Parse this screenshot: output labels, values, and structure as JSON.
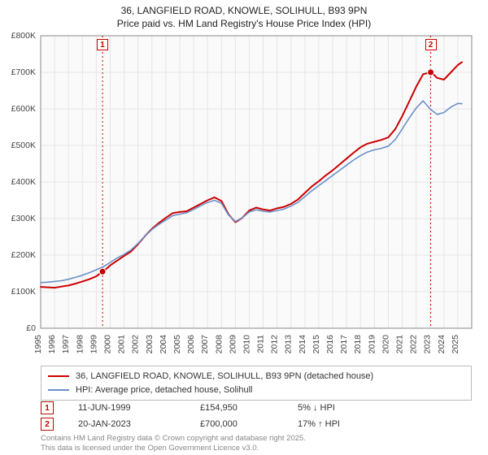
{
  "title_line1": "36, LANGFIELD ROAD, KNOWLE, SOLIHULL, B93 9PN",
  "title_line2": "Price paid vs. HM Land Registry's House Price Index (HPI)",
  "title_fontsize": 12,
  "chart": {
    "type": "line",
    "background_color": "#ffffff",
    "plot_background_color": "#fafafa",
    "grid_color": "#e5e5e5",
    "axis_color": "#888888",
    "border_color": "#bbbbbb",
    "x": {
      "min": 1995,
      "max": 2026,
      "ticks": [
        1995,
        1996,
        1997,
        1998,
        1999,
        2000,
        2001,
        2002,
        2003,
        2004,
        2005,
        2006,
        2007,
        2008,
        2009,
        2010,
        2011,
        2012,
        2013,
        2014,
        2015,
        2016,
        2017,
        2018,
        2019,
        2020,
        2021,
        2022,
        2023,
        2024,
        2025
      ],
      "tick_fontsize": 10.5,
      "tick_rotation": -90
    },
    "y": {
      "min": 0,
      "max": 800000,
      "ticks": [
        0,
        100000,
        200000,
        300000,
        400000,
        500000,
        600000,
        700000,
        800000
      ],
      "tick_labels": [
        "£0",
        "£100K",
        "£200K",
        "£300K",
        "£400K",
        "£500K",
        "£600K",
        "£700K",
        "£800K"
      ],
      "tick_fontsize": 10.5
    },
    "series": [
      {
        "name": "36, LANGFIELD ROAD, KNOWLE, SOLIHULL, B93 9PN (detached house)",
        "color": "#cc0000",
        "width": 2,
        "points": [
          [
            1995.0,
            113000
          ],
          [
            1995.5,
            112000
          ],
          [
            1996.0,
            111000
          ],
          [
            1996.5,
            114000
          ],
          [
            1997.0,
            117000
          ],
          [
            1997.5,
            122000
          ],
          [
            1998.0,
            128000
          ],
          [
            1998.5,
            134000
          ],
          [
            1999.0,
            142000
          ],
          [
            1999.45,
            154950
          ],
          [
            1999.5,
            155000
          ],
          [
            2000.0,
            172000
          ],
          [
            2000.5,
            185000
          ],
          [
            2001.0,
            198000
          ],
          [
            2001.5,
            210000
          ],
          [
            2002.0,
            230000
          ],
          [
            2002.5,
            252000
          ],
          [
            2003.0,
            272000
          ],
          [
            2003.5,
            288000
          ],
          [
            2004.0,
            302000
          ],
          [
            2004.5,
            315000
          ],
          [
            2005.0,
            318000
          ],
          [
            2005.5,
            320000
          ],
          [
            2006.0,
            330000
          ],
          [
            2006.5,
            340000
          ],
          [
            2007.0,
            350000
          ],
          [
            2007.5,
            358000
          ],
          [
            2008.0,
            348000
          ],
          [
            2008.5,
            312000
          ],
          [
            2009.0,
            290000
          ],
          [
            2009.5,
            302000
          ],
          [
            2010.0,
            322000
          ],
          [
            2010.5,
            330000
          ],
          [
            2011.0,
            325000
          ],
          [
            2011.5,
            322000
          ],
          [
            2012.0,
            328000
          ],
          [
            2012.5,
            332000
          ],
          [
            2013.0,
            340000
          ],
          [
            2013.5,
            352000
          ],
          [
            2014.0,
            370000
          ],
          [
            2014.5,
            388000
          ],
          [
            2015.0,
            402000
          ],
          [
            2015.5,
            418000
          ],
          [
            2016.0,
            432000
          ],
          [
            2016.5,
            448000
          ],
          [
            2017.0,
            464000
          ],
          [
            2017.5,
            480000
          ],
          [
            2018.0,
            495000
          ],
          [
            2018.5,
            505000
          ],
          [
            2019.0,
            510000
          ],
          [
            2019.5,
            515000
          ],
          [
            2020.0,
            522000
          ],
          [
            2020.5,
            545000
          ],
          [
            2021.0,
            580000
          ],
          [
            2021.5,
            620000
          ],
          [
            2022.0,
            660000
          ],
          [
            2022.5,
            695000
          ],
          [
            2023.05,
            700000
          ],
          [
            2023.1,
            700000
          ],
          [
            2023.5,
            685000
          ],
          [
            2024.0,
            680000
          ],
          [
            2024.5,
            700000
          ],
          [
            2025.0,
            720000
          ],
          [
            2025.3,
            728000
          ]
        ]
      },
      {
        "name": "HPI: Average price, detached house, Solihull",
        "color": "#6a90c8",
        "width": 1.6,
        "points": [
          [
            1995.0,
            125000
          ],
          [
            1995.5,
            126000
          ],
          [
            1996.0,
            128000
          ],
          [
            1996.5,
            130000
          ],
          [
            1997.0,
            134000
          ],
          [
            1997.5,
            139000
          ],
          [
            1998.0,
            145000
          ],
          [
            1998.5,
            152000
          ],
          [
            1999.0,
            160000
          ],
          [
            1999.5,
            168000
          ],
          [
            2000.0,
            180000
          ],
          [
            2000.5,
            192000
          ],
          [
            2001.0,
            202000
          ],
          [
            2001.5,
            214000
          ],
          [
            2002.0,
            232000
          ],
          [
            2002.5,
            252000
          ],
          [
            2003.0,
            270000
          ],
          [
            2003.5,
            284000
          ],
          [
            2004.0,
            296000
          ],
          [
            2004.5,
            308000
          ],
          [
            2005.0,
            312000
          ],
          [
            2005.5,
            316000
          ],
          [
            2006.0,
            325000
          ],
          [
            2006.5,
            335000
          ],
          [
            2007.0,
            344000
          ],
          [
            2007.5,
            350000
          ],
          [
            2008.0,
            342000
          ],
          [
            2008.5,
            310000
          ],
          [
            2009.0,
            292000
          ],
          [
            2009.5,
            302000
          ],
          [
            2010.0,
            318000
          ],
          [
            2010.5,
            324000
          ],
          [
            2011.0,
            320000
          ],
          [
            2011.5,
            318000
          ],
          [
            2012.0,
            322000
          ],
          [
            2012.5,
            326000
          ],
          [
            2013.0,
            334000
          ],
          [
            2013.5,
            344000
          ],
          [
            2014.0,
            360000
          ],
          [
            2014.5,
            376000
          ],
          [
            2015.0,
            390000
          ],
          [
            2015.5,
            404000
          ],
          [
            2016.0,
            418000
          ],
          [
            2016.5,
            432000
          ],
          [
            2017.0,
            446000
          ],
          [
            2017.5,
            460000
          ],
          [
            2018.0,
            472000
          ],
          [
            2018.5,
            482000
          ],
          [
            2019.0,
            488000
          ],
          [
            2019.5,
            492000
          ],
          [
            2020.0,
            498000
          ],
          [
            2020.5,
            516000
          ],
          [
            2021.0,
            545000
          ],
          [
            2021.5,
            575000
          ],
          [
            2022.0,
            602000
          ],
          [
            2022.5,
            622000
          ],
          [
            2023.0,
            600000
          ],
          [
            2023.5,
            585000
          ],
          [
            2024.0,
            590000
          ],
          [
            2024.5,
            605000
          ],
          [
            2025.0,
            615000
          ],
          [
            2025.3,
            614000
          ]
        ]
      }
    ],
    "event_lines": [
      {
        "x": 1999.45,
        "color": "#cc0000",
        "dash": "2,3",
        "badge": "1"
      },
      {
        "x": 2023.05,
        "color": "#cc0000",
        "dash": "2,3",
        "badge": "2"
      }
    ],
    "sale_markers": [
      {
        "x": 1999.45,
        "y": 154950,
        "color": "#cc0000",
        "radius": 4
      },
      {
        "x": 2023.05,
        "y": 700000,
        "color": "#cc0000",
        "radius": 4
      }
    ]
  },
  "legend": {
    "border_color": "#bbbbbb",
    "rows": [
      {
        "color": "#cc0000",
        "label": "36, LANGFIELD ROAD, KNOWLE, SOLIHULL, B93 9PN (detached house)"
      },
      {
        "color": "#6a90c8",
        "label": "HPI: Average price, detached house, Solihull"
      }
    ]
  },
  "sales": [
    {
      "badge": "1",
      "date": "11-JUN-1999",
      "price": "£154,950",
      "delta": "5% ↓ HPI"
    },
    {
      "badge": "2",
      "date": "20-JAN-2023",
      "price": "£700,000",
      "delta": "17% ↑ HPI"
    }
  ],
  "attribution_line1": "Contains HM Land Registry data © Crown copyright and database right 2025.",
  "attribution_line2": "This data is licensed under the Open Government Licence v3.0."
}
